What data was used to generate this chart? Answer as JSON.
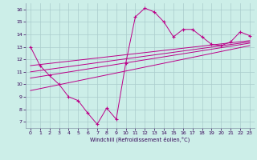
{
  "xlabel": "Windchill (Refroidissement éolien,°C)",
  "bg_color": "#cceee8",
  "grid_color": "#aacccc",
  "line_color": "#bb0088",
  "xlim": [
    -0.5,
    23.5
  ],
  "ylim": [
    6.5,
    16.5
  ],
  "xticks": [
    0,
    1,
    2,
    3,
    4,
    5,
    6,
    7,
    8,
    9,
    10,
    11,
    12,
    13,
    14,
    15,
    16,
    17,
    18,
    19,
    20,
    21,
    22,
    23
  ],
  "yticks": [
    7,
    8,
    9,
    10,
    11,
    12,
    13,
    14,
    15,
    16
  ],
  "main_x": [
    0,
    1,
    2,
    3,
    4,
    5,
    6,
    7,
    8,
    9,
    10,
    11,
    12,
    13,
    14,
    15,
    16,
    17,
    18,
    19,
    20,
    21,
    22,
    23
  ],
  "main_y": [
    13.0,
    11.5,
    10.7,
    10.0,
    9.0,
    8.7,
    7.7,
    6.8,
    8.1,
    7.2,
    11.7,
    15.4,
    16.1,
    15.8,
    15.0,
    13.8,
    14.4,
    14.4,
    13.8,
    13.2,
    13.1,
    13.4,
    14.2,
    13.9
  ],
  "line2_x": [
    0,
    23
  ],
  "line2_y": [
    11.5,
    13.5
  ],
  "line3_x": [
    0,
    23
  ],
  "line3_y": [
    11.0,
    13.4
  ],
  "line4_x": [
    0,
    23
  ],
  "line4_y": [
    10.5,
    13.3
  ],
  "line5_x": [
    0,
    23
  ],
  "line5_y": [
    9.5,
    13.1
  ]
}
